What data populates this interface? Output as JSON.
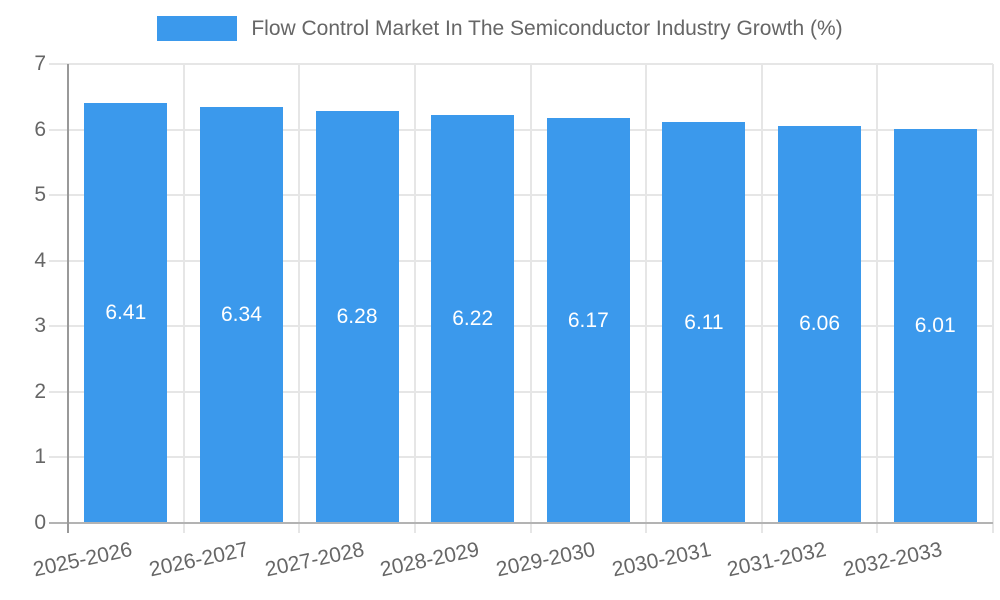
{
  "chart_data": {
    "type": "bar",
    "title": "Flow Control Market In The Semiconductor Industry Growth (%)",
    "legend_position": "top",
    "categories": [
      "2025-2026",
      "2026-2027",
      "2027-2028",
      "2028-2029",
      "2029-2030",
      "2030-2031",
      "2031-2032",
      "2032-2033"
    ],
    "series": [
      {
        "name": "Flow Control Market In The Semiconductor Industry Growth (%)",
        "values": [
          6.41,
          6.34,
          6.28,
          6.22,
          6.17,
          6.11,
          6.06,
          6.01
        ]
      }
    ],
    "value_labels": [
      "6.41",
      "6.34",
      "6.28",
      "6.22",
      "6.17",
      "6.11",
      "6.06",
      "6.01"
    ],
    "xlabel": "",
    "ylabel": "",
    "ylim": [
      0,
      7
    ],
    "yticks": [
      0,
      1,
      2,
      3,
      4,
      5,
      6,
      7
    ],
    "grid": true
  },
  "style": {
    "bar_color": "#3B99EC",
    "bar_label_color": "#FFFFFF",
    "tick_label_color": "#666666",
    "gridline_color": "#E6E6E6",
    "y_axis_color": "#999999",
    "x_axis_color": "#B3B3B3",
    "background": "#FFFFFF"
  }
}
